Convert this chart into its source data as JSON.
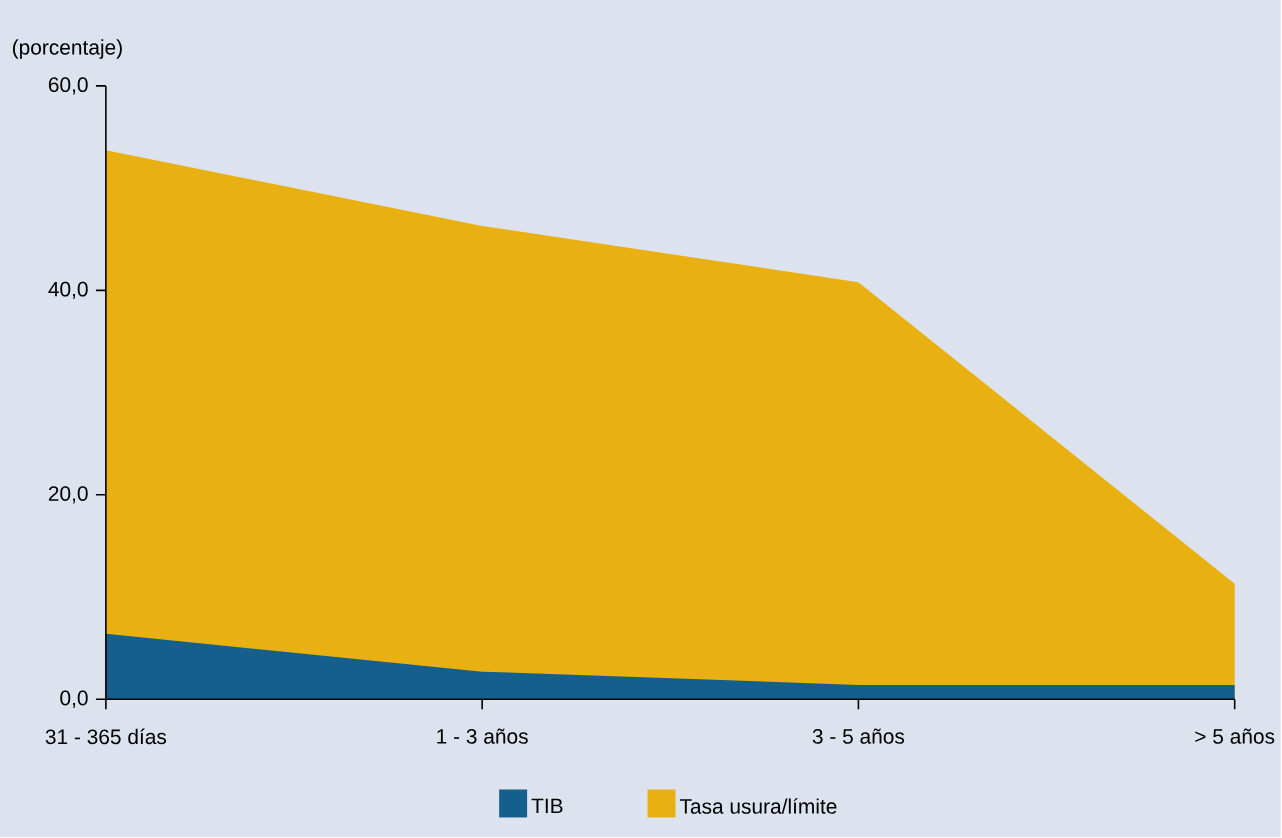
{
  "chart_data": {
    "type": "area",
    "ylabel": "(porcentaje)",
    "categories": [
      "31 - 365 días",
      "1 - 3 años",
      "3 - 5 años",
      "> 5 años"
    ],
    "series": [
      {
        "name": "Tasa usura/límite",
        "color": "#e9b011",
        "values": [
          53.7,
          46.3,
          40.8,
          11.3
        ]
      },
      {
        "name": "TIB",
        "color": "#145f8c",
        "values": [
          6.4,
          2.7,
          1.4,
          1.4
        ]
      }
    ],
    "ylim": [
      0,
      60
    ],
    "yticks": [
      {
        "value": 0,
        "label": "0,0"
      },
      {
        "value": 20,
        "label": "20,0"
      },
      {
        "value": 40,
        "label": "40,0"
      },
      {
        "value": 60,
        "label": "60,0"
      }
    ],
    "grid": false,
    "legend": "bottom"
  }
}
